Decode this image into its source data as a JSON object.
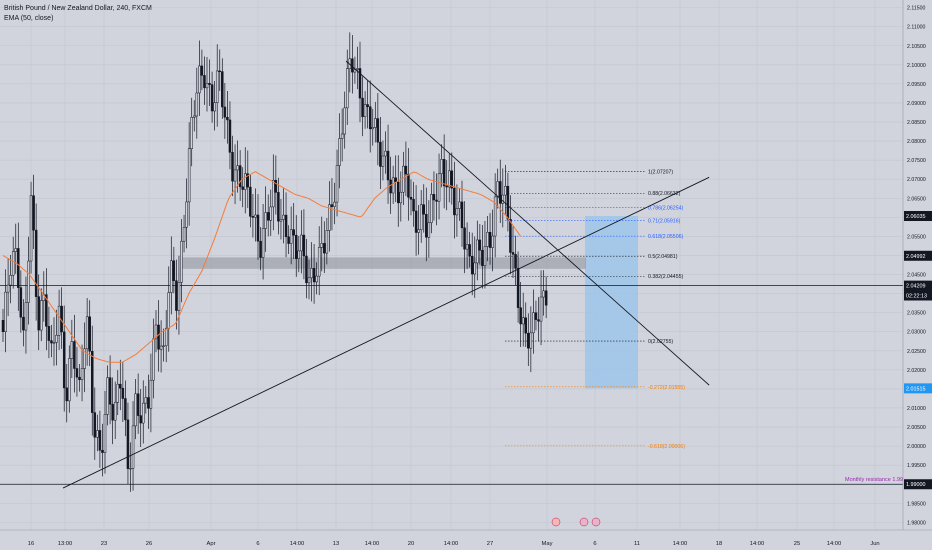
{
  "legend": {
    "symbol": "British Pound / New Zealand Dollar, 240, FXCM",
    "indicator": "EMA (50, close)"
  },
  "colors": {
    "background": "#d1d4dc",
    "grid": "#c2c6cf",
    "candle": "#131722",
    "ema": "#f57c3a",
    "trendline": "#131722",
    "zone": "#8c909a",
    "target_box": "#9ec4ea",
    "fib_black": "#131722",
    "fib_blue": "#2962ff",
    "fib_orange": "#f57c00",
    "monthly_label": "#9c27b0",
    "price_badge": "#131722",
    "price_badge_blue": "#2196f3"
  },
  "price_axis": {
    "ticks": [
      "2.11500",
      "2.11000",
      "2.10500",
      "2.10000",
      "2.09500",
      "2.09000",
      "2.08500",
      "2.08000",
      "2.07500",
      "2.07000",
      "2.06500",
      "2.06000",
      "2.05500",
      "2.05000",
      "2.04500",
      "2.04000",
      "2.03500",
      "2.03000",
      "2.02500",
      "2.02000",
      "2.01500",
      "2.01000",
      "2.00500",
      "2.00000",
      "1.99500",
      "1.99000",
      "1.98500",
      "1.98000"
    ],
    "badges": [
      {
        "label": "2.06035",
        "price": 2.06035,
        "style": "dark"
      },
      {
        "label": "2.04992",
        "price": 2.04992,
        "style": "dark"
      },
      {
        "label": "2.04209",
        "price": 2.04209,
        "style": "dark"
      },
      {
        "label": "02:22:13",
        "price": 2.0395,
        "style": "dark"
      },
      {
        "label": "2.01515",
        "price": 2.01515,
        "style": "blue"
      },
      {
        "label": "1.99000",
        "price": 1.99,
        "style": "dark"
      }
    ]
  },
  "time_axis": {
    "ticks": [
      "16",
      "13:00",
      "23",
      "26",
      "Apr",
      "6",
      "14:00",
      "13",
      "14:00",
      "20",
      "14:00",
      "27",
      "May",
      "6",
      "11",
      "14:00",
      "18",
      "14:00",
      "25",
      "14:00",
      "Jun"
    ]
  },
  "fib_levels": [
    {
      "label": "1(2.07207)",
      "price": 2.07207,
      "color": "black"
    },
    {
      "label": "0.88(2.06632)",
      "price": 2.06632,
      "color": "black"
    },
    {
      "label": "0.786(2.06254)",
      "price": 2.06254,
      "color": "blue"
    },
    {
      "label": "0.71(2.05916)",
      "price": 2.05916,
      "color": "blue"
    },
    {
      "label": "0.618(2.05506)",
      "price": 2.05506,
      "color": "blue"
    },
    {
      "label": "0.5(2.04981)",
      "price": 2.04981,
      "color": "black"
    },
    {
      "label": "0.382(2.04455)",
      "price": 2.04455,
      "color": "black"
    },
    {
      "label": "0(2.02755)",
      "price": 2.02755,
      "color": "black"
    },
    {
      "label": "-0.272(2.01555)",
      "price": 2.01555,
      "color": "orange"
    },
    {
      "label": "-0.618(2.00006)",
      "price": 2.00006,
      "color": "orange"
    }
  ],
  "horizontal_lines": [
    {
      "price": 2.04209
    },
    {
      "price": 1.99
    }
  ],
  "monthly_label": "Monthly resistance 1.99",
  "chart_data": {
    "type": "candlestick",
    "title": "British Pound / New Zealand Dollar, 240, FXCM",
    "indicator": "EMA (50, close)",
    "ylim": [
      1.978,
      2.117
    ],
    "grid": true,
    "key_prices": {
      "last": 2.04209,
      "high_april": 2.101,
      "low_march": 1.989,
      "recent_low": 2.02755,
      "target": 2.01515,
      "entry": 2.06035
    },
    "resistance_zone": [
      2.0465,
      2.0495
    ],
    "target_box": {
      "top": 2.06035,
      "bottom": 2.01515
    },
    "trendlines": [
      {
        "name": "ascending",
        "from": {
          "bar": 0,
          "price": 1.989
        },
        "to": {
          "bar": 213,
          "price": 2.0705
        }
      },
      {
        "name": "descending",
        "from": {
          "bar": 111,
          "price": 2.101
        },
        "to": {
          "bar": 213,
          "price": 2.016
        }
      }
    ],
    "anchors": [
      2.03,
      2.045,
      2.05,
      2.028,
      2.065,
      2.03,
      2.04,
      2.025,
      2.035,
      2.01,
      2.03,
      2.015,
      2.032,
      2.005,
      2.0,
      2.015,
      2.005,
      2.02,
      1.995,
      2.01,
      2.005,
      2.015,
      2.035,
      2.02,
      2.045,
      2.04,
      2.06,
      2.08,
      2.095,
      2.1,
      2.09,
      2.095,
      2.085,
      2.075,
      2.07,
      2.065,
      2.06,
      2.055,
      2.06,
      2.065,
      2.06,
      2.058,
      2.05,
      2.05,
      2.045,
      2.048,
      2.05,
      2.06,
      2.075,
      2.09,
      2.1,
      2.095,
      2.09,
      2.085,
      2.075,
      2.075,
      2.07,
      2.065,
      2.07,
      2.06,
      2.062,
      2.055,
      2.065,
      2.075,
      2.07,
      2.06,
      2.058,
      2.05,
      2.05,
      2.048,
      2.055,
      2.07,
      2.065,
      2.05,
      2.04,
      2.03,
      2.028,
      2.035,
      2.042
    ],
    "ema_anchors": [
      2.05,
      2.048,
      2.045,
      2.04,
      2.035,
      2.03,
      2.025,
      2.023,
      2.022,
      2.022,
      2.024,
      2.027,
      2.03,
      2.032,
      2.04,
      2.046,
      2.055,
      2.065,
      2.07,
      2.072,
      2.07,
      2.068,
      2.066,
      2.065,
      2.063,
      2.062,
      2.061,
      2.06,
      2.065,
      2.068,
      2.07,
      2.072,
      2.07,
      2.069,
      2.068,
      2.067,
      2.066,
      2.064,
      2.06,
      2.055
    ]
  }
}
